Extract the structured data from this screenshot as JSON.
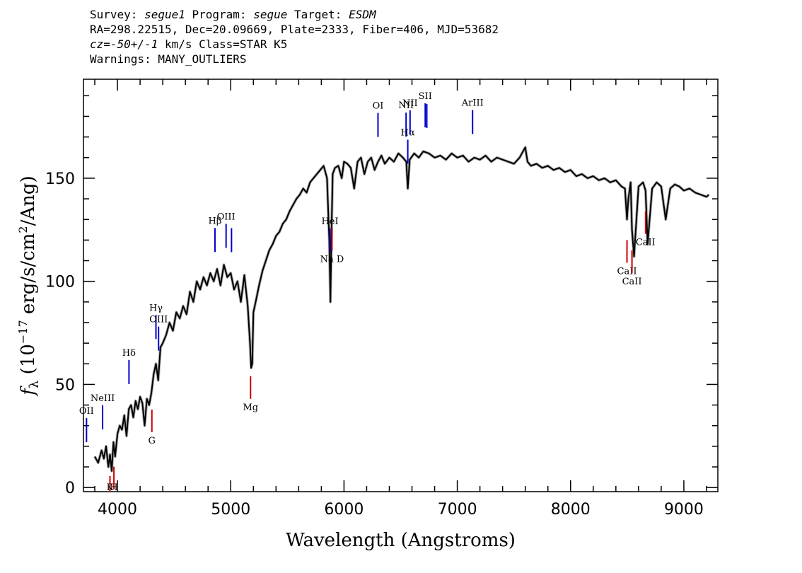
{
  "header": {
    "line1": {
      "survey_label": "Survey: ",
      "survey": "segue1",
      "program_label": " Program: ",
      "program": "segue",
      "target_label": " Target: ",
      "target": "ESDM"
    },
    "line2": "RA=298.22515, Dec=20.09669, Plate=2333, Fiber=406, MJD=53682",
    "line3": {
      "cz": "cz=-50+/-1",
      "rest": " km/s Class=STAR K5"
    },
    "line4": "Warnings: MANY_OUTLIERS"
  },
  "chart_data": {
    "type": "line",
    "xlabel": "Wavelength (Angstroms)",
    "ylabel": "f_λ (10^-17 erg/s/cm^2/Ang)",
    "ylabel_parts": {
      "f": "f",
      "sub": "λ",
      "pre": " (10",
      "exp1": "−17",
      "mid": " erg/s/cm",
      "exp2": "2",
      "post": "/Ang)"
    },
    "xlim": [
      3700,
      9300
    ],
    "ylim": [
      -2,
      198
    ],
    "xticks": [
      4000,
      5000,
      6000,
      7000,
      8000,
      9000
    ],
    "yticks": [
      0,
      50,
      100,
      150
    ],
    "series": [
      {
        "color": "#000000",
        "x": [
          3800,
          3830,
          3860,
          3880,
          3900,
          3920,
          3935,
          3950,
          3965,
          3980,
          4000,
          4020,
          4040,
          4060,
          4080,
          4100,
          4120,
          4140,
          4160,
          4180,
          4200,
          4220,
          4240,
          4260,
          4280,
          4300,
          4320,
          4340,
          4360,
          4380,
          4400,
          4430,
          4460,
          4490,
          4520,
          4550,
          4580,
          4610,
          4640,
          4670,
          4700,
          4730,
          4760,
          4790,
          4820,
          4850,
          4880,
          4910,
          4940,
          4970,
          5000,
          5030,
          5060,
          5090,
          5120,
          5150,
          5170,
          5180,
          5190,
          5200,
          5220,
          5250,
          5280,
          5310,
          5340,
          5370,
          5400,
          5430,
          5460,
          5490,
          5520,
          5550,
          5580,
          5610,
          5640,
          5670,
          5700,
          5730,
          5760,
          5790,
          5820,
          5850,
          5870,
          5880,
          5890,
          5900,
          5920,
          5950,
          5980,
          6000,
          6030,
          6060,
          6090,
          6120,
          6150,
          6180,
          6210,
          6240,
          6270,
          6300,
          6330,
          6360,
          6400,
          6440,
          6480,
          6520,
          6550,
          6563,
          6580,
          6620,
          6660,
          6700,
          6750,
          6800,
          6850,
          6900,
          6950,
          7000,
          7050,
          7100,
          7150,
          7200,
          7250,
          7300,
          7350,
          7400,
          7450,
          7500,
          7550,
          7600,
          7620,
          7650,
          7700,
          7750,
          7800,
          7850,
          7900,
          7950,
          8000,
          8050,
          8100,
          8150,
          8200,
          8250,
          8300,
          8350,
          8400,
          8450,
          8480,
          8498,
          8510,
          8530,
          8542,
          8560,
          8600,
          8640,
          8662,
          8680,
          8720,
          8760,
          8800,
          8840,
          8880,
          8920,
          8960,
          9000,
          9050,
          9100,
          9150,
          9200,
          9220
        ],
        "y": [
          15,
          12,
          18,
          14,
          20,
          10,
          16,
          8,
          22,
          15,
          26,
          30,
          28,
          35,
          25,
          38,
          40,
          34,
          42,
          38,
          44,
          41,
          30,
          43,
          40,
          46,
          55,
          60,
          52,
          68,
          70,
          74,
          80,
          76,
          85,
          82,
          88,
          84,
          95,
          90,
          100,
          96,
          102,
          98,
          104,
          100,
          106,
          98,
          108,
          102,
          104,
          96,
          100,
          90,
          103,
          88,
          70,
          58,
          60,
          85,
          90,
          98,
          105,
          110,
          115,
          118,
          122,
          124,
          128,
          130,
          134,
          137,
          140,
          142,
          145,
          143,
          148,
          150,
          152,
          154,
          156,
          150,
          120,
          90,
          125,
          152,
          155,
          156,
          150,
          158,
          157,
          155,
          145,
          158,
          160,
          152,
          158,
          160,
          154,
          158,
          161,
          157,
          160,
          158,
          162,
          160,
          158,
          145,
          159,
          162,
          160,
          163,
          162,
          160,
          161,
          159,
          162,
          160,
          161,
          158,
          160,
          159,
          161,
          158,
          160,
          159,
          158,
          157,
          160,
          165,
          158,
          156,
          157,
          155,
          156,
          154,
          155,
          153,
          154,
          151,
          152,
          150,
          151,
          149,
          150,
          148,
          149,
          146,
          145,
          130,
          140,
          148,
          125,
          112,
          146,
          148,
          144,
          118,
          145,
          148,
          146,
          130,
          145,
          147,
          146,
          144,
          145,
          143,
          142,
          141,
          142
        ]
      }
    ],
    "emission_lines": [
      {
        "label": "OII",
        "x": 3727
      },
      {
        "label": "NeIII",
        "x": 3869
      },
      {
        "label": "Hδ",
        "x": 4102
      },
      {
        "label": "Hγ",
        "x": 4340
      },
      {
        "label": "OIII",
        "x": 4363
      },
      {
        "label": "Hβ",
        "x": 4861
      },
      {
        "label": "OIII",
        "x": 4959
      },
      {
        "label": "OIII",
        "x": 5007
      },
      {
        "label": "HeI",
        "x": 5876
      },
      {
        "label": "OI",
        "x": 6300
      },
      {
        "label": "NII",
        "x": 6548
      },
      {
        "label": "Hα",
        "x": 6563
      },
      {
        "label": "NII",
        "x": 6583
      },
      {
        "label": "SII",
        "x": 6717
      },
      {
        "label": "SII",
        "x": 6731
      },
      {
        "label": "ArIII",
        "x": 7135
      }
    ],
    "absorption_lines": [
      {
        "label": "K",
        "x": 3934
      },
      {
        "label": "H",
        "x": 3969
      },
      {
        "label": "G",
        "x": 4304
      },
      {
        "label": "Mg",
        "x": 5175
      },
      {
        "label": "Na D",
        "x": 5894
      },
      {
        "label": "CaII",
        "x": 8498
      },
      {
        "label": "CaII",
        "x": 8542
      },
      {
        "label": "CaII",
        "x": 8662
      }
    ],
    "colors": {
      "emission": "#0000cc",
      "absorption": "#cc0000",
      "spectrum": "#000000",
      "error": "#b0b0b0"
    }
  }
}
